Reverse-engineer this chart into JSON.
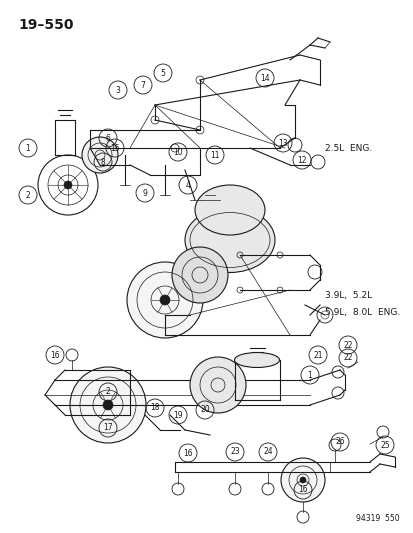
{
  "title": "19–550",
  "bg_color": "#ffffff",
  "line_color": "#1a1a1a",
  "fig_width": 4.14,
  "fig_height": 5.33,
  "dpi": 100,
  "watermark": "94319  550",
  "label_2_5L": "2.5L  ENG.",
  "label_3_9L": "3.9L,  5.2L",
  "label_5_9L": "5.9L,  8.0L  ENG."
}
